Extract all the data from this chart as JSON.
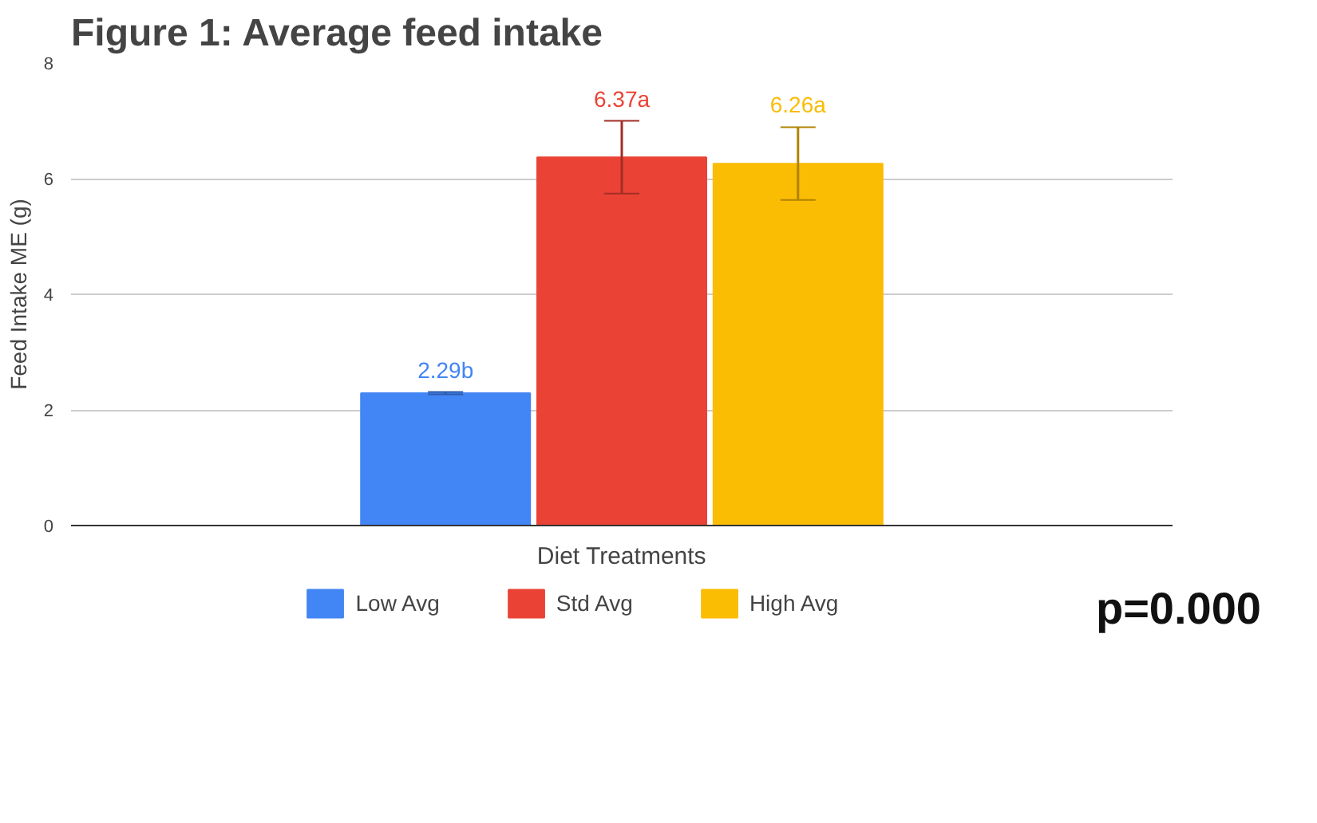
{
  "chart_data": {
    "type": "bar",
    "title": "Figure 1: Average feed intake",
    "xlabel": "Diet Treatments",
    "ylabel": "Feed Intake ME (g)",
    "categories": [
      null
    ],
    "series": [
      {
        "name": "Low Avg",
        "color": "#4285f4",
        "values": [
          2.29
        ],
        "errors": [
          0.02
        ],
        "value_labels": [
          "2.29b"
        ]
      },
      {
        "name": "Std Avg",
        "color": "#ea4335",
        "values": [
          6.37
        ],
        "errors": [
          0.63
        ],
        "value_labels": [
          "6.37a"
        ]
      },
      {
        "name": "High Avg",
        "color": "#fbbc04",
        "values": [
          6.26
        ],
        "errors": [
          0.63
        ],
        "value_labels": [
          "6.26a"
        ]
      }
    ],
    "ylim": [
      0,
      8
    ],
    "yticks": [
      0,
      2,
      4,
      6,
      8
    ],
    "grid": "y",
    "legend": "bottom",
    "annotations": [
      "p=0.000"
    ]
  }
}
